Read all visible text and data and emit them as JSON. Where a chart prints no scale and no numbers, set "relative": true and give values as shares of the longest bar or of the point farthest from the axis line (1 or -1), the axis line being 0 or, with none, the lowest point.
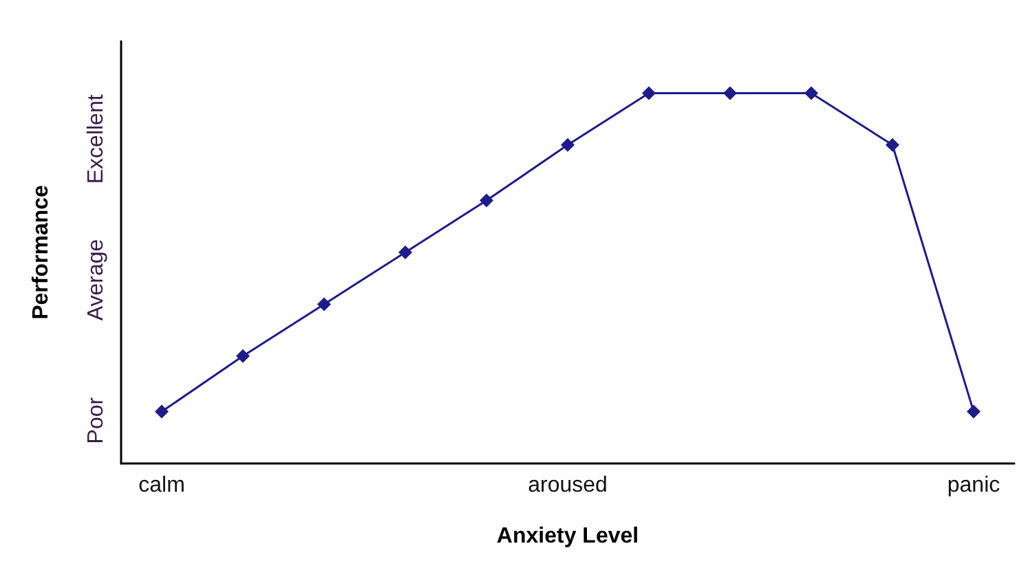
{
  "chart_data": {
    "type": "line",
    "xlabel": "Anxiety Level",
    "ylabel": "Performance",
    "relative": true,
    "categories": [
      "calm",
      null,
      null,
      null,
      null,
      "aroused",
      null,
      null,
      null,
      null,
      "panic"
    ],
    "series": [
      {
        "color": "#1c1c8a",
        "values": [
          0.14,
          0.29,
          0.43,
          0.57,
          0.71,
          0.86,
          1,
          1,
          1,
          0.86,
          0.14
        ]
      }
    ],
    "annotations": [
      "Poor",
      "Average",
      "Excellent"
    ],
    "grid": false,
    "marker": "diamond",
    "line_style": "solid"
  }
}
